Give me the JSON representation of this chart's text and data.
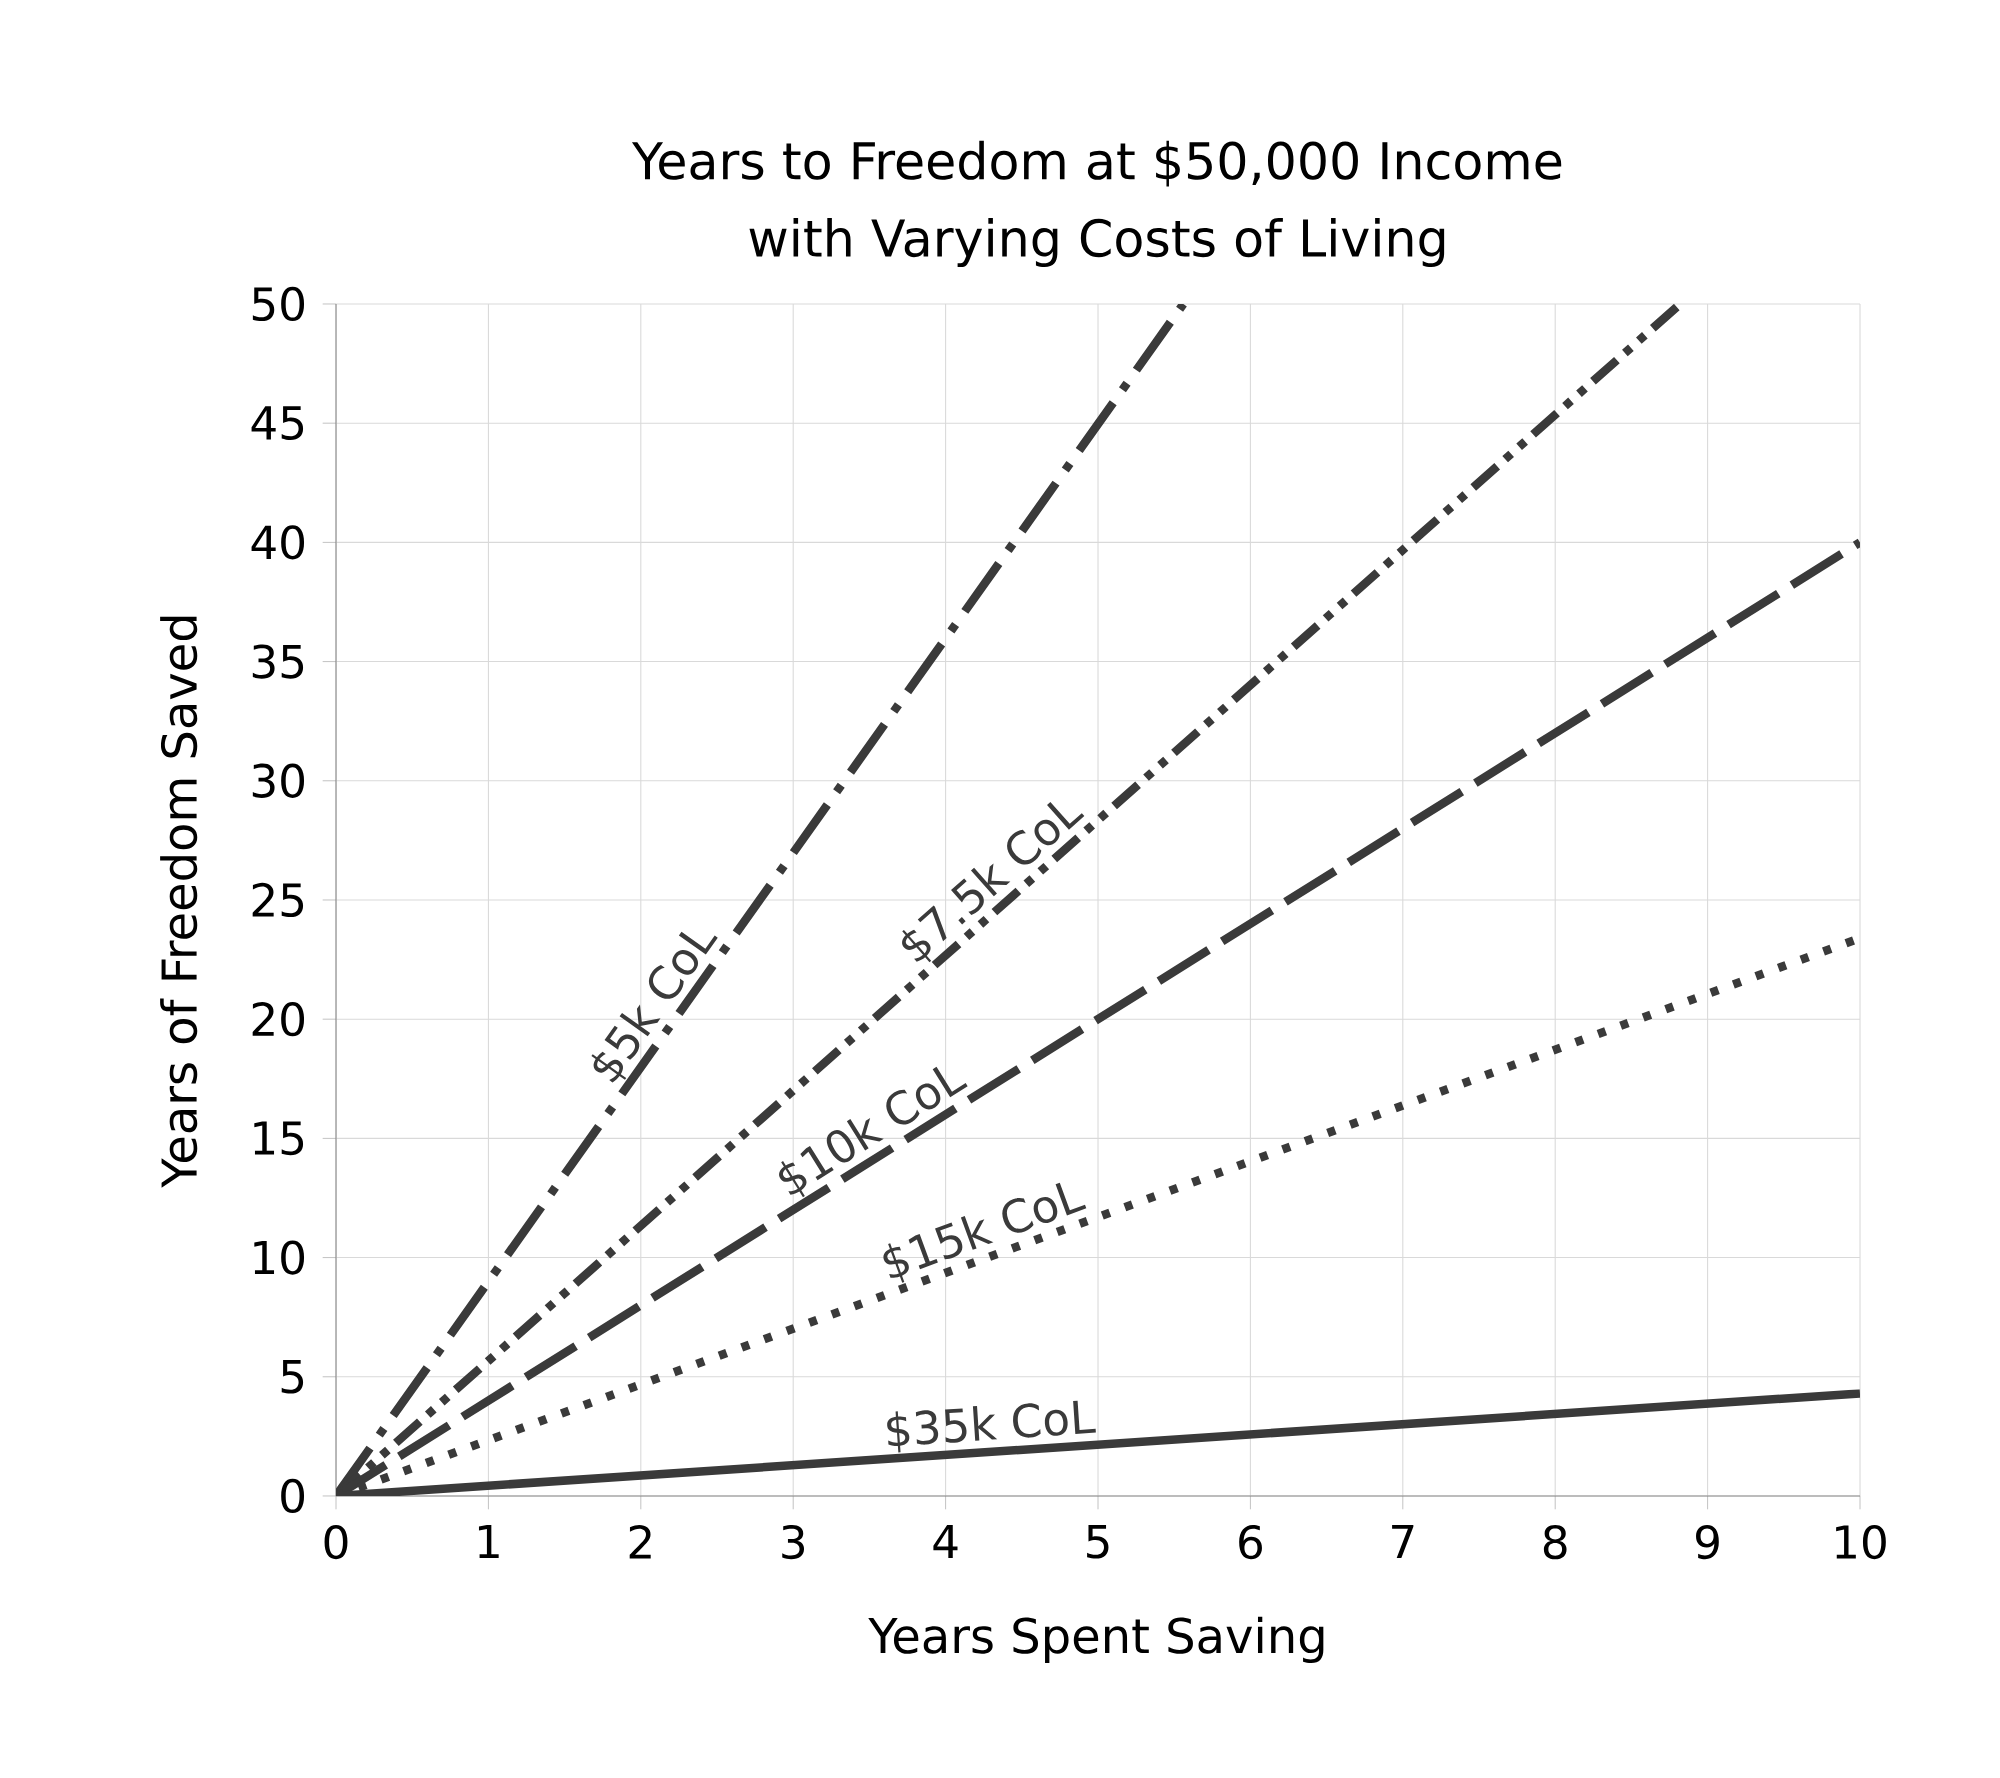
{
  "chart_data": {
    "type": "line",
    "title": "Years to Freedom at $50,000 Income\nwith Varying Costs of Living",
    "xlabel": "Years Spent Saving",
    "ylabel": "Years of Freedom Saved",
    "series": [
      {
        "name": "$5k CoL",
        "color": "#3a3a3a",
        "x": [
          0,
          5.56
        ],
        "values": [
          0,
          50
        ],
        "line_style": "dashdotted"
      },
      {
        "name": "$7.5k CoL",
        "color": "#3a3a3a",
        "x": [
          0,
          8.82
        ],
        "values": [
          0,
          50
        ],
        "line_style": "dashdotdotted"
      },
      {
        "name": "$10k CoL",
        "color": "#3a3a3a",
        "x": [
          0,
          10
        ],
        "values": [
          0,
          40
        ],
        "line_style": "dashed"
      },
      {
        "name": "$15k CoL",
        "color": "#3a3a3a",
        "x": [
          0,
          10
        ],
        "values": [
          0,
          23.4
        ],
        "line_style": "dotted"
      },
      {
        "name": "$35k CoL",
        "color": "#3a3a3a",
        "x": [
          0,
          10
        ],
        "values": [
          0,
          4.3
        ],
        "line_style": "solid"
      }
    ],
    "xlim": [
      0,
      10
    ],
    "ylim": [
      0,
      50
    ],
    "xticks": [
      0,
      1,
      2,
      3,
      4,
      5,
      6,
      7,
      8,
      9,
      10
    ],
    "yticks": [
      0,
      5,
      10,
      15,
      20,
      25,
      30,
      35,
      40,
      45,
      50
    ],
    "grid": true,
    "legend": false,
    "marker": "none"
  }
}
